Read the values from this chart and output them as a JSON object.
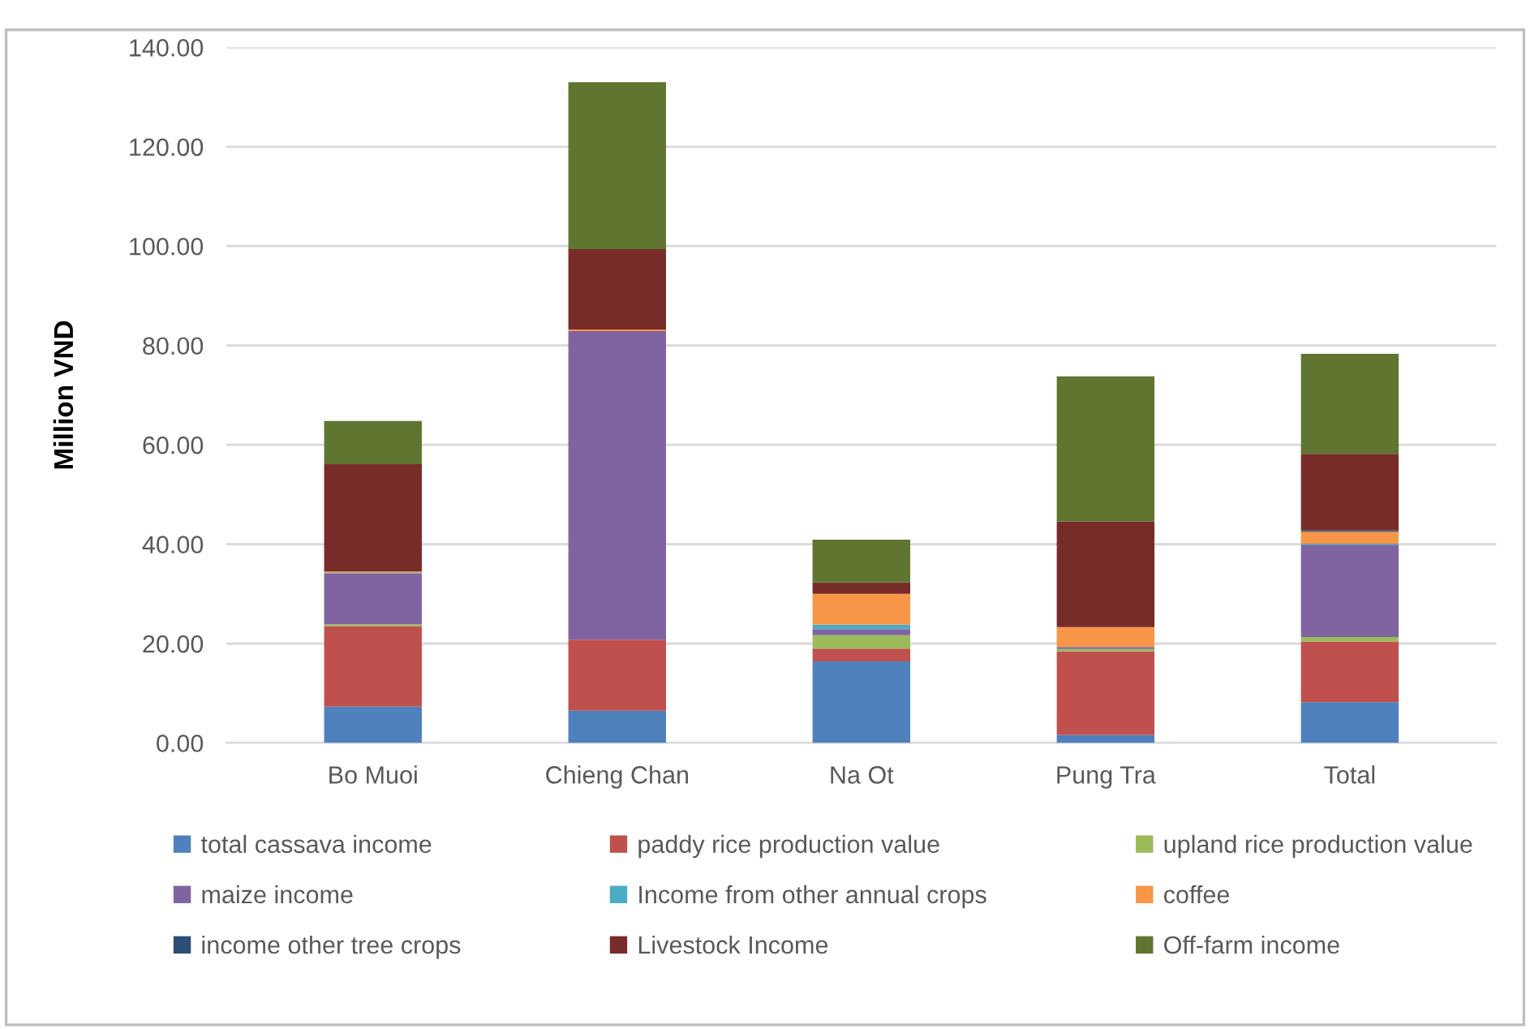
{
  "chart_data": {
    "type": "bar",
    "stacked": true,
    "ylabel": "Million VND",
    "categories": [
      "Bo Muoi",
      "Chieng Chan",
      "Na Ot",
      "Pung Tra",
      "Total"
    ],
    "series": [
      {
        "name": "total cassava income",
        "color": "#4f81bd",
        "values": [
          7.3,
          6.5,
          16.4,
          1.6,
          8.2
        ]
      },
      {
        "name": "paddy rice production value",
        "color": "#c0504d",
        "values": [
          16.2,
          14.3,
          2.6,
          16.8,
          12.2
        ]
      },
      {
        "name": "upland rice production value",
        "color": "#9bbb59",
        "values": [
          0.4,
          0,
          2.7,
          0.5,
          0.9
        ]
      },
      {
        "name": "maize income",
        "color": "#8064a2",
        "values": [
          10.2,
          62.1,
          1.2,
          0.4,
          18.6
        ]
      },
      {
        "name": "Income from other annual crops",
        "color": "#4bacc6",
        "values": [
          0.1,
          0,
          0.9,
          0,
          0.2
        ]
      },
      {
        "name": "coffee",
        "color": "#f79646",
        "values": [
          0.3,
          0.3,
          6.2,
          4.0,
          2.4
        ]
      },
      {
        "name": "income other tree crops",
        "color": "#2c4d75",
        "values": [
          0,
          0,
          0,
          0,
          0.3
        ]
      },
      {
        "name": "Livestock Income",
        "color": "#772c2a",
        "values": [
          21.6,
          16.2,
          2.3,
          21.3,
          15.4
        ]
      },
      {
        "name": "Off-farm income",
        "color": "#5f7530",
        "values": [
          8.7,
          33.6,
          8.6,
          29.2,
          20.1
        ]
      }
    ],
    "ylim": [
      0,
      140
    ],
    "yticks": [
      {
        "value": 0,
        "label": "0.00"
      },
      {
        "value": 20,
        "label": "20.00"
      },
      {
        "value": 40,
        "label": "40.00"
      },
      {
        "value": 60,
        "label": "60.00"
      },
      {
        "value": 80,
        "label": "80.00"
      },
      {
        "value": 100,
        "label": "100.00"
      },
      {
        "value": 120,
        "label": "120.00"
      },
      {
        "value": 140,
        "label": "140.00"
      }
    ],
    "grid": "y",
    "legend": "bottom"
  }
}
